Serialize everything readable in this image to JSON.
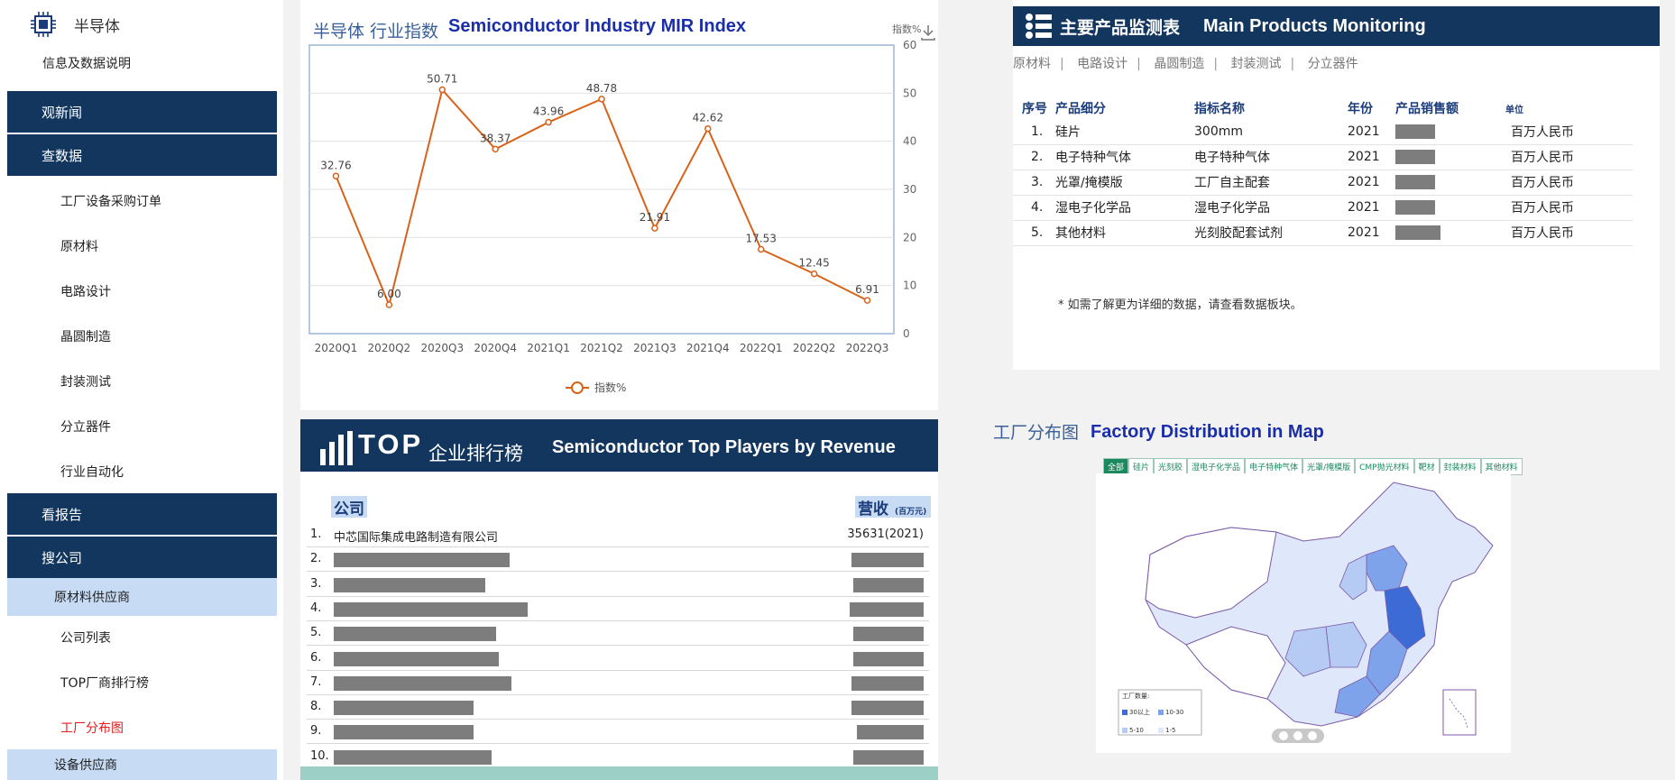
{
  "sidebar": {
    "title": "半导体",
    "info_link": "信息及数据说明",
    "sections": {
      "news": "观新闻",
      "data": "查数据",
      "reports": "看报告",
      "companies": "搜公司"
    },
    "data_items": [
      "工厂设备采购订单",
      "原材料",
      "电路设计",
      "晶圆制造",
      "封装测试",
      "分立器件",
      "行业自动化"
    ],
    "company_sub1": "原材料供应商",
    "company_items": [
      "公司列表",
      "TOP厂商排行榜",
      "工厂分布图"
    ],
    "company_sub2": "设备供应商",
    "active_color": "#e02020"
  },
  "index_chart": {
    "title_cn": "半导体 行业指数",
    "title_en": "Semiconductor Industry MIR Index",
    "download_icon": "download-icon"
  },
  "chart_data": {
    "type": "line",
    "categories": [
      "2020Q1",
      "2020Q2",
      "2020Q3",
      "2020Q4",
      "2021Q1",
      "2021Q2",
      "2021Q3",
      "2021Q4",
      "2022Q1",
      "2022Q2",
      "2022Q3"
    ],
    "series": [
      {
        "name": "指数%",
        "values": [
          32.76,
          6.0,
          50.71,
          38.37,
          43.96,
          48.78,
          21.91,
          42.62,
          17.53,
          12.45,
          6.91
        ]
      }
    ],
    "value_labels": [
      "32.76",
      "6.00",
      "50.71",
      "38.37",
      "43.96",
      "48.78",
      "21.91",
      "42.62",
      "17.53",
      "12.45",
      "6.91"
    ],
    "ylabel": "指数%",
    "ylim": [
      0,
      60
    ],
    "yticks": [
      "0",
      "10",
      "20",
      "30",
      "40",
      "50",
      "60"
    ],
    "grid": true,
    "legend": "bottom-center",
    "color": "#d9621a"
  },
  "main_products": {
    "title_cn": "主要产品监测表",
    "title_en": "Main Products Monitoring",
    "tabs": [
      "原材料",
      "电路设计",
      "晶圆制造",
      "封装测试",
      "分立器件"
    ],
    "columns": [
      "序号",
      "产品细分",
      "指标名称",
      "年份",
      "产品销售额",
      "单位"
    ],
    "rows": [
      {
        "no": "1.",
        "product": "硅片",
        "indicator": "300mm",
        "year": "2021",
        "unit": "百万人民币"
      },
      {
        "no": "2.",
        "product": "电子特种气体",
        "indicator": "电子特种气体",
        "year": "2021",
        "unit": "百万人民币"
      },
      {
        "no": "3.",
        "product": "光罩/掩模版",
        "indicator": "工厂自主配套",
        "year": "2021",
        "unit": "百万人民币"
      },
      {
        "no": "4.",
        "product": "湿电子化学品",
        "indicator": "湿电子化学品",
        "year": "2021",
        "unit": "百万人民币"
      },
      {
        "no": "5.",
        "product": "其他材料",
        "indicator": "光刻胶配套试剂",
        "year": "2021",
        "unit": "百万人民币"
      }
    ],
    "note": "* 如需了解更为详细的数据，请查看数据板块。"
  },
  "top_players": {
    "title_cn": "企业排行榜",
    "title_top": "TOP",
    "title_en": "Semiconductor Top Players by Revenue",
    "col_company": "公司",
    "col_revenue": "营收",
    "col_revenue_unit": "(百万元)",
    "rows": [
      {
        "no": "1.",
        "name": "中芯国际集成电路制造有限公司",
        "revenue": "35631(2021)"
      },
      {
        "no": "2."
      },
      {
        "no": "3."
      },
      {
        "no": "4."
      },
      {
        "no": "5."
      },
      {
        "no": "6."
      },
      {
        "no": "7."
      },
      {
        "no": "8."
      },
      {
        "no": "9."
      },
      {
        "no": "10."
      }
    ]
  },
  "factory_map": {
    "title_cn": "工厂分布图",
    "title_en": "Factory Distribution in Map",
    "tabs": [
      "全部",
      "硅片",
      "光刻胶",
      "湿电子化学品",
      "电子特种气体",
      "光罩/掩模版",
      "CMP抛光材料",
      "靶材",
      "封装材料",
      "其他材料"
    ],
    "legend_title": "工厂数量:",
    "legend_items": [
      "30以上",
      "10-30",
      "5-10",
      "1-5"
    ],
    "legend_colors": [
      "#3d6bd6",
      "#7ea3ea",
      "#b5cbf3",
      "#dfe8fa"
    ]
  }
}
